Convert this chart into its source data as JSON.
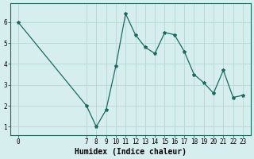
{
  "x": [
    0,
    7,
    8,
    9,
    10,
    11,
    12,
    13,
    14,
    15,
    16,
    17,
    18,
    19,
    20,
    21,
    22,
    23
  ],
  "y": [
    6.0,
    2.0,
    1.0,
    1.8,
    3.9,
    6.4,
    5.4,
    4.8,
    4.5,
    5.5,
    5.4,
    4.6,
    3.5,
    3.1,
    2.6,
    3.7,
    2.4,
    2.5
  ],
  "line_color": "#1a6b5e",
  "marker": "*",
  "marker_size": 3,
  "bg_color": "#d6eeed",
  "grid_color": "#b8d8d5",
  "xlabel": "Humidex (Indice chaleur)",
  "xticks": [
    0,
    7,
    8,
    9,
    10,
    11,
    12,
    13,
    14,
    15,
    16,
    17,
    18,
    19,
    20,
    21,
    22,
    23
  ],
  "yticks": [
    1,
    2,
    3,
    4,
    5,
    6
  ],
  "xlim": [
    -0.8,
    23.8
  ],
  "ylim": [
    0.6,
    6.9
  ],
  "xlabel_fontsize": 7,
  "tick_fontsize": 5.5,
  "linewidth": 0.9
}
